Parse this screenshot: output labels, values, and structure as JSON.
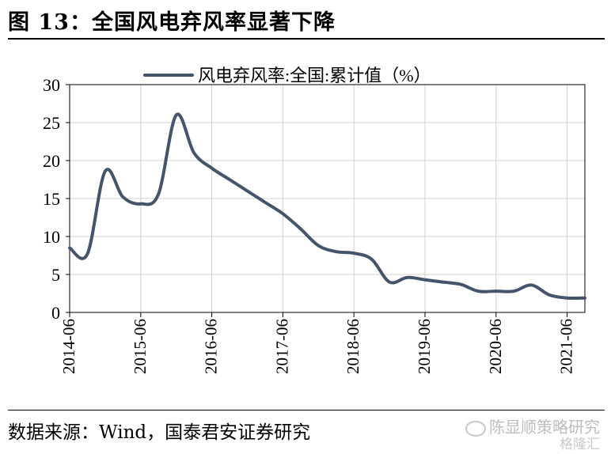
{
  "figure": {
    "title": "图 13：全国风电弃风率显著下降",
    "source": "数据来源：Wind，国泰君安证券研究",
    "watermark": "陈显顺策略研究",
    "watermark_sub": "格隆汇"
  },
  "chart_data": {
    "type": "line",
    "ylim": [
      0,
      30
    ],
    "yticks": [
      0,
      5,
      10,
      15,
      20,
      25,
      30
    ],
    "xlim": [
      "2014-06",
      "2021-09"
    ],
    "xticks": [
      "2014-06",
      "2015-06",
      "2016-06",
      "2017-06",
      "2018-06",
      "2019-06",
      "2020-06",
      "2021-06"
    ],
    "grid": true,
    "legend": "top-center",
    "series": [
      {
        "name": "风电弃风率:全国:累计值（%）",
        "color": "#44546a",
        "x": [
          "2014-06",
          "2014-09",
          "2014-12",
          "2015-03",
          "2015-06",
          "2015-09",
          "2015-12",
          "2016-03",
          "2016-06",
          "2016-09",
          "2016-12",
          "2017-03",
          "2017-06",
          "2017-09",
          "2017-12",
          "2018-03",
          "2018-06",
          "2018-09",
          "2018-12",
          "2019-03",
          "2019-06",
          "2019-09",
          "2019-12",
          "2020-03",
          "2020-06",
          "2020-09",
          "2020-12",
          "2021-03",
          "2021-06",
          "2021-09"
        ],
        "values": [
          8.5,
          7.7,
          18.6,
          15.2,
          14.3,
          15.6,
          26.0,
          21.0,
          19.0,
          17.5,
          16.0,
          14.5,
          13.0,
          11.0,
          8.8,
          8.0,
          7.8,
          7.0,
          4.0,
          4.6,
          4.3,
          4.0,
          3.7,
          2.8,
          2.8,
          2.8,
          3.6,
          2.3,
          1.9,
          1.9
        ]
      }
    ]
  }
}
